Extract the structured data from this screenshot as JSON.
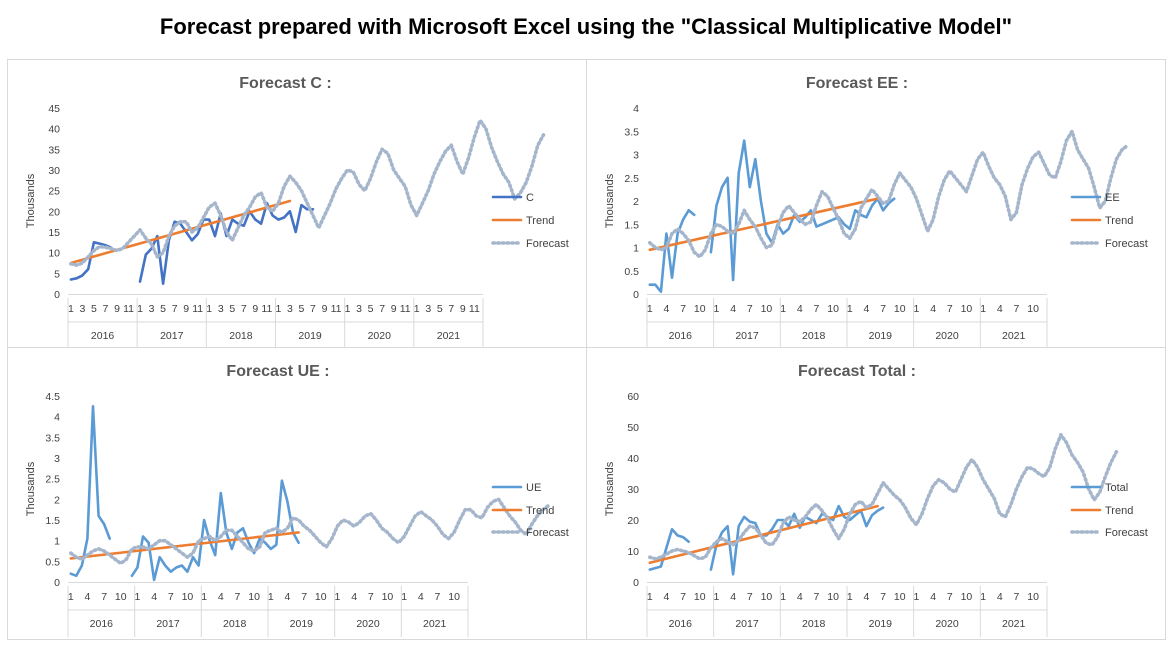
{
  "page": {
    "title": "Forecast prepared with Microsoft Excel using the \"Classical Multiplicative Model\""
  },
  "colors": {
    "actual_c": "#4472c4",
    "actual": "#5b9bd5",
    "trend": "#ed7d31",
    "forecast": "#a5b6cc"
  },
  "chart_data": [
    {
      "id": "c",
      "type": "line",
      "title": "Forecast  C :",
      "ylabel": "Thousands",
      "ylim": [
        0,
        45
      ],
      "yticks": [
        0,
        5,
        10,
        15,
        20,
        25,
        30,
        35,
        40,
        45
      ],
      "x_unit": "month index from Jan 2016 (1 = Jan 2016)",
      "month_labels": [
        "1",
        "3",
        "5",
        "7",
        "9",
        "11"
      ],
      "years": [
        "2016",
        "2017",
        "2018",
        "2019",
        "2020",
        "2021"
      ],
      "legend": [
        "C",
        "Trend",
        "Forecast"
      ],
      "series": [
        {
          "name": "C",
          "role": "actual",
          "start": 1,
          "values": [
            3.5,
            3.8,
            4.5,
            6,
            12.5,
            12.2,
            11.8,
            11.2,
            null,
            null,
            null,
            null,
            3,
            9.5,
            11,
            14,
            2.5,
            13,
            17.5,
            17,
            15,
            13,
            14.5,
            18,
            18,
            14,
            19.5,
            14,
            18,
            17,
            16.5,
            20,
            18,
            17,
            22,
            19,
            18,
            18.5,
            20,
            15,
            21.5,
            20.5,
            20.5
          ]
        },
        {
          "name": "Trend",
          "role": "trend",
          "start": 1,
          "values": [
            7.5,
            22.5
          ],
          "end": 39
        },
        {
          "name": "Forecast",
          "role": "forecast",
          "start": 1,
          "values": [
            7.3,
            7,
            7.5,
            9,
            10.5,
            11.5,
            11.3,
            11,
            10.5,
            11,
            12.5,
            14,
            15.5,
            13.5,
            12,
            9,
            10,
            14,
            16.5,
            17.5,
            17.5,
            15,
            16,
            18.5,
            21,
            22,
            19,
            15,
            13,
            16,
            19,
            21,
            23.5,
            24.5,
            21,
            20,
            22,
            26,
            28.5,
            27,
            25,
            22,
            19,
            16,
            19,
            22,
            25.5,
            28,
            30,
            29.5,
            26.5,
            25,
            28,
            32,
            35,
            34,
            30,
            28,
            26,
            21.5,
            19,
            22,
            25,
            29,
            32,
            34.5,
            36,
            32,
            29,
            33,
            38,
            42,
            40,
            35.5,
            32,
            29,
            27,
            23,
            24.5,
            27,
            31,
            36,
            38.5
          ]
        }
      ]
    },
    {
      "id": "ee",
      "type": "line",
      "title": "Forecast  EE :",
      "ylabel": "Thousands",
      "ylim": [
        0,
        4
      ],
      "yticks": [
        "0",
        "0.5",
        "1",
        "1.5",
        "2",
        "2.5",
        "3",
        "3.5",
        "4"
      ],
      "x_unit": "month index from Jan 2016 (1 = Jan 2016)",
      "month_labels": [
        "1",
        "4",
        "7",
        "10"
      ],
      "years": [
        "2016",
        "2017",
        "2018",
        "2019",
        "2020",
        "2021"
      ],
      "legend": [
        "EE",
        "Trend",
        "Forecast"
      ],
      "series": [
        {
          "name": "EE",
          "role": "actual",
          "start": 1,
          "values": [
            0.2,
            0.2,
            0.05,
            1.3,
            0.35,
            1.3,
            1.6,
            1.8,
            1.7,
            null,
            null,
            0.9,
            1.9,
            2.3,
            2.5,
            0.3,
            2.6,
            3.3,
            2.3,
            2.9,
            2,
            1.3,
            1.1,
            1.5,
            1.3,
            1.4,
            1.7,
            1.55,
            1.65,
            1.8,
            1.45,
            1.5,
            1.55,
            1.6,
            1.65,
            1.5,
            1.4,
            1.8,
            1.7,
            1.65,
            1.9,
            2.05,
            1.8,
            1.95,
            2.05
          ]
        },
        {
          "name": "Trend",
          "role": "trend",
          "start": 1,
          "values": [
            0.95,
            2.05
          ],
          "end": 42
        },
        {
          "name": "Forecast",
          "role": "forecast",
          "start": 1,
          "values": [
            1.1,
            1,
            0.95,
            1,
            1.3,
            1.4,
            1.3,
            1.15,
            0.9,
            0.8,
            0.95,
            1.3,
            1.5,
            1.45,
            1.35,
            1.3,
            1.5,
            1.8,
            1.6,
            1.45,
            1.2,
            1,
            1.05,
            1.45,
            1.75,
            1.9,
            1.75,
            1.6,
            1.5,
            1.55,
            1.9,
            2.2,
            2.1,
            1.85,
            1.6,
            1.3,
            1.2,
            1.4,
            1.85,
            2.05,
            2.25,
            2.1,
            1.95,
            2,
            2.35,
            2.6,
            2.45,
            2.3,
            2.05,
            1.7,
            1.35,
            1.6,
            2.1,
            2.45,
            2.65,
            2.5,
            2.35,
            2.2,
            2.55,
            2.9,
            3.05,
            2.75,
            2.5,
            2.35,
            2.1,
            1.6,
            1.75,
            2.35,
            2.7,
            2.95,
            3.05,
            2.8,
            2.55,
            2.5,
            2.85,
            3.3,
            3.5,
            3.1,
            2.9,
            2.7,
            2.3,
            1.85,
            2,
            2.5,
            2.9,
            3.1,
            3.2
          ]
        }
      ]
    },
    {
      "id": "ue",
      "type": "line",
      "title": "Forecast  UE :",
      "ylabel": "Thousands",
      "ylim": [
        0,
        4.5
      ],
      "yticks": [
        "0",
        "0.5",
        "1",
        "1.5",
        "2",
        "2.5",
        "3",
        "3.5",
        "4",
        "4.5"
      ],
      "x_unit": "month index from Jan 2016 (1 = Jan 2016)",
      "month_labels": [
        "1",
        "4",
        "7",
        "10"
      ],
      "years": [
        "2016",
        "2017",
        "2018",
        "2019",
        "2020",
        "2021"
      ],
      "legend": [
        "UE",
        "Trend",
        "Forecast"
      ],
      "series": [
        {
          "name": "UE",
          "role": "actual",
          "start": 1,
          "values": [
            0.2,
            0.15,
            0.4,
            1.05,
            4.25,
            1.6,
            1.4,
            1.05,
            null,
            null,
            null,
            0.15,
            0.35,
            1.1,
            0.95,
            0.05,
            0.6,
            0.4,
            0.25,
            0.35,
            0.4,
            0.25,
            0.6,
            0.4,
            1.5,
            1,
            0.65,
            2.15,
            1.2,
            0.8,
            1.2,
            1.3,
            0.95,
            0.7,
            1.05,
            0.95,
            0.8,
            0.9,
            2.45,
            1.95,
            1.2,
            0.95
          ]
        },
        {
          "name": "Trend",
          "role": "trend",
          "start": 1,
          "values": [
            0.57,
            1.2
          ],
          "end": 42
        },
        {
          "name": "Forecast",
          "role": "forecast",
          "start": 1,
          "values": [
            0.7,
            0.6,
            0.55,
            0.65,
            0.75,
            0.8,
            0.75,
            0.65,
            0.55,
            0.45,
            0.55,
            0.8,
            0.85,
            0.85,
            0.8,
            0.9,
            1,
            1,
            0.9,
            0.8,
            0.7,
            0.6,
            0.7,
            1,
            1.05,
            1.1,
            1,
            1.1,
            1.25,
            1.25,
            1.1,
            0.95,
            0.8,
            0.75,
            0.85,
            1.2,
            1.25,
            1.3,
            1.2,
            1.3,
            1.55,
            1.5,
            1.35,
            1.25,
            1.1,
            0.95,
            0.85,
            1.05,
            1.35,
            1.5,
            1.45,
            1.35,
            1.45,
            1.6,
            1.65,
            1.5,
            1.3,
            1.2,
            1.05,
            0.95,
            1.1,
            1.35,
            1.6,
            1.7,
            1.6,
            1.5,
            1.35,
            1.15,
            1.05,
            1.2,
            1.5,
            1.75,
            1.75,
            1.6,
            1.55,
            1.8,
            1.95,
            2,
            1.8,
            1.6,
            1.45,
            1.25,
            1.15,
            1.4,
            1.6,
            1.75,
            1.85
          ]
        }
      ]
    },
    {
      "id": "total",
      "type": "line",
      "title": "Forecast  Total :",
      "ylabel": "Thousands",
      "ylim": [
        0,
        60
      ],
      "yticks": [
        "0",
        "10",
        "20",
        "30",
        "40",
        "50",
        "60"
      ],
      "x_unit": "month index from Jan 2016 (1 = Jan 2016)",
      "month_labels": [
        "1",
        "4",
        "7",
        "10"
      ],
      "years": [
        "2016",
        "2017",
        "2018",
        "2019",
        "2020",
        "2021"
      ],
      "legend": [
        "Total",
        "Trend",
        "Forecast"
      ],
      "series": [
        {
          "name": "Total",
          "role": "actual",
          "start": 1,
          "values": [
            4,
            4.5,
            5,
            11,
            17,
            15,
            14.5,
            13,
            null,
            null,
            null,
            4,
            12,
            16,
            18,
            2.5,
            18,
            21,
            19.5,
            19,
            15,
            15,
            17,
            20,
            20,
            18,
            22,
            17.5,
            21,
            20,
            19,
            22,
            21,
            20,
            24.5,
            21,
            20,
            21.5,
            23,
            18,
            21.5,
            23,
            24
          ]
        },
        {
          "name": "Trend",
          "role": "trend",
          "start": 1,
          "values": [
            6.2,
            24.5
          ],
          "end": 42
        },
        {
          "name": "Forecast",
          "role": "forecast",
          "start": 1,
          "values": [
            8,
            7.5,
            8,
            9,
            10,
            10.5,
            10,
            9.5,
            8.5,
            7.5,
            8,
            11,
            13,
            14,
            13,
            12,
            13.5,
            16,
            18,
            17.5,
            15,
            12.5,
            12,
            14.5,
            19,
            21,
            20,
            19.5,
            21,
            23.5,
            25,
            23,
            20.5,
            17,
            14,
            17,
            22,
            25,
            26,
            24,
            25,
            28.5,
            32,
            30,
            28,
            26.5,
            24,
            20.5,
            18.5,
            22,
            27,
            31,
            33,
            32,
            30,
            29,
            33,
            37,
            39.5,
            37,
            33,
            30,
            27,
            22,
            21,
            25,
            30,
            34,
            37,
            36.5,
            35,
            34,
            37,
            43,
            47.5,
            45,
            41,
            38.5,
            35.5,
            30,
            26.5,
            29,
            34,
            38.5,
            42
          ]
        }
      ]
    }
  ]
}
